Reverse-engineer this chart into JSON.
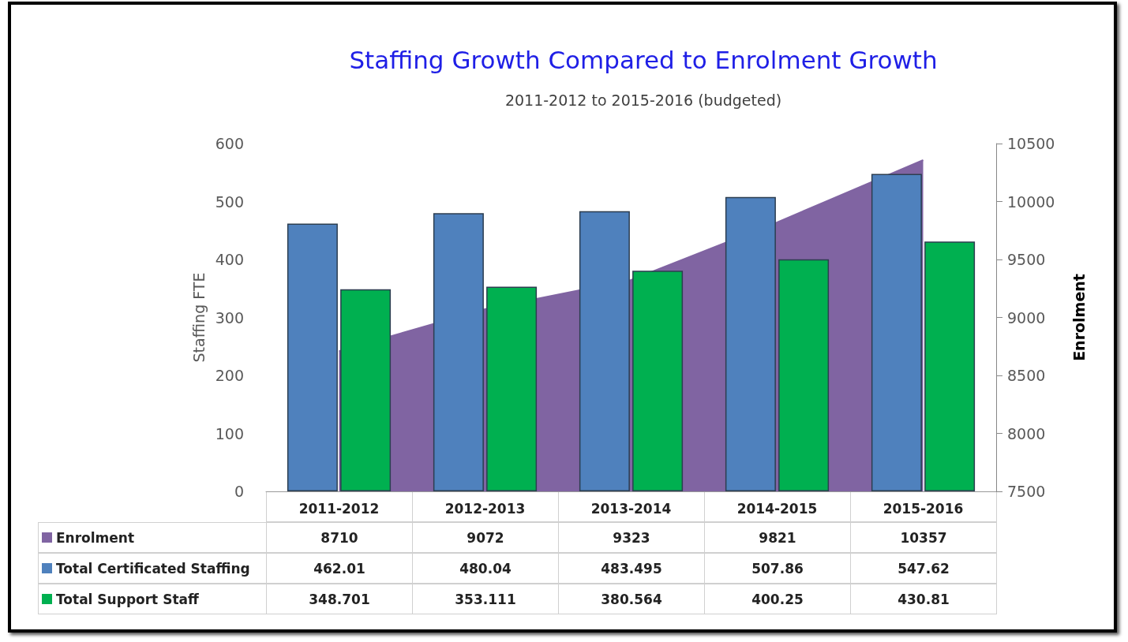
{
  "chart_data": {
    "type": "bar",
    "title": "Staffing Growth Compared to Enrolment Growth",
    "subtitle": "2011-2012 to 2015-2016 (budgeted)",
    "ylabel": "Staffing FTE",
    "y2label": "Enrolment",
    "categories": [
      "2011-2012",
      "2012-2013",
      "2013-2014",
      "2014-2015",
      "2015-2016"
    ],
    "series": [
      {
        "name": "Enrolment",
        "type": "area",
        "axis": "y2",
        "color": "#8064a2",
        "values": [
          8710,
          9072,
          9323,
          9821,
          10357
        ]
      },
      {
        "name": "Total Certificated Staffing",
        "color": "#4f81bd",
        "values": [
          462.01,
          480.04,
          483.495,
          507.86,
          547.62
        ]
      },
      {
        "name": "Total Support Staff",
        "color": "#00b050",
        "values": [
          348.701,
          353.111,
          380.564,
          400.25,
          430.81
        ]
      }
    ],
    "ylim": [
      0,
      600
    ],
    "yticks": [
      0,
      100,
      200,
      300,
      400,
      500,
      600
    ],
    "y2lim": [
      7500,
      10500
    ],
    "y2ticks": [
      7500,
      8000,
      8500,
      9000,
      9500,
      10000,
      10500
    ],
    "data_labels": true,
    "legend": "bottom"
  }
}
